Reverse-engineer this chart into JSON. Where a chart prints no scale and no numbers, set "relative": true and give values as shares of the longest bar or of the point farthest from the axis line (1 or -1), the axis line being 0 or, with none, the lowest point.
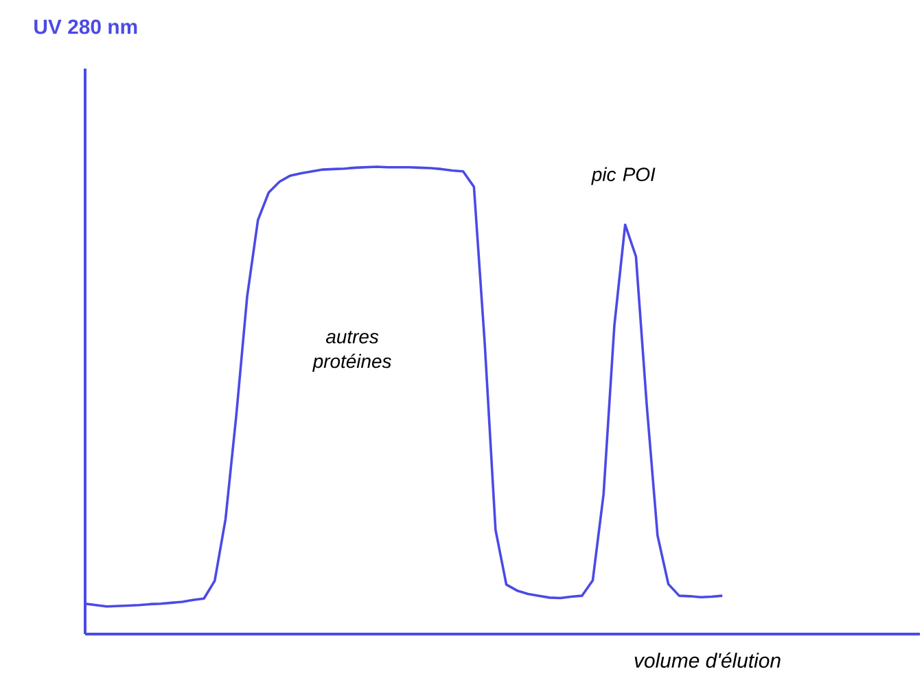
{
  "chart_data": {
    "type": "line",
    "relative": true,
    "xlabel": "volume d'élution",
    "marker": "none",
    "line_style": "solid",
    "annotations": [
      "UV 280 nm",
      "autres protéines",
      "pic POI"
    ],
    "categories": [
      null,
      null,
      null,
      null,
      null,
      null,
      null,
      null,
      null,
      null,
      null,
      null,
      null,
      null,
      null,
      null,
      null,
      null,
      null,
      null,
      null,
      null,
      null,
      null,
      null,
      null,
      null,
      null,
      null,
      null,
      null,
      null,
      null,
      null,
      null,
      null,
      null,
      null,
      null,
      null,
      null,
      null,
      null,
      null,
      null,
      null,
      null,
      null,
      null,
      null,
      null,
      null,
      null,
      null,
      null,
      null,
      null,
      null,
      null,
      null
    ],
    "series": [
      {
        "color": "#4a4ae6",
        "values": [
          0.065,
          0.062,
          0.059,
          0.06,
          0.061,
          0.062,
          0.064,
          0.065,
          0.067,
          0.069,
          0.073,
          0.076,
          0.114,
          0.246,
          0.469,
          0.722,
          0.886,
          0.945,
          0.968,
          0.981,
          0.986,
          0.99,
          0.994,
          0.995,
          0.996,
          0.998,
          0.999,
          1,
          0.999,
          0.999,
          0.999,
          0.998,
          0.997,
          0.995,
          0.992,
          0.99,
          0.957,
          0.622,
          0.223,
          0.106,
          0.093,
          0.086,
          0.082,
          0.078,
          0.077,
          0.08,
          0.082,
          0.115,
          0.299,
          0.66,
          0.876,
          0.808,
          0.49,
          0.211,
          0.107,
          0.082,
          0.081,
          0.079,
          0.08,
          0.082
        ]
      }
    ]
  }
}
